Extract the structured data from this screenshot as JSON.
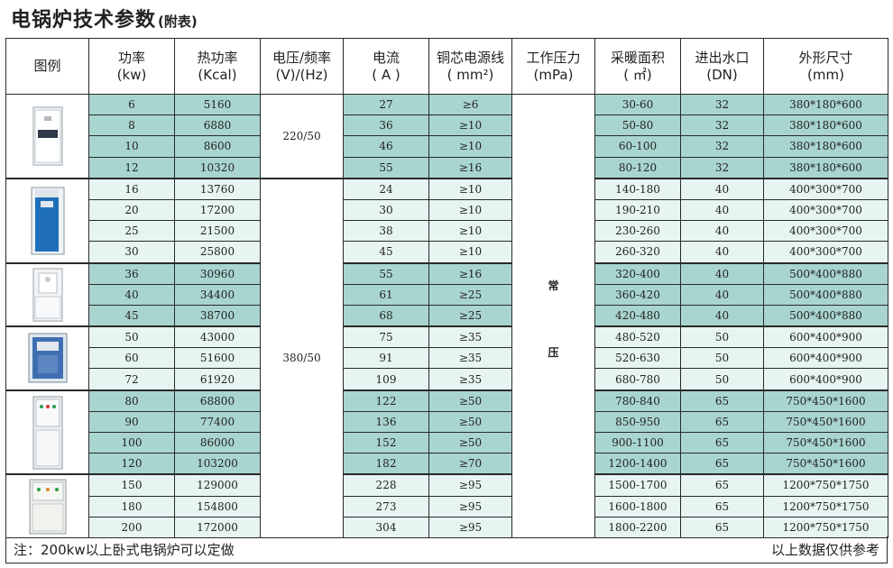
{
  "title": {
    "main": "电锅炉技术参数",
    "sub": "(附表)"
  },
  "headers": [
    {
      "l1": "图例",
      "l2": ""
    },
    {
      "l1": "功率",
      "l2": "(kw)"
    },
    {
      "l1": "热功率",
      "l2": "(Kcal)"
    },
    {
      "l1": "电压/频率",
      "l2": "(V)/(Hz)"
    },
    {
      "l1": "电流",
      "l2": "( A )"
    },
    {
      "l1": "铜芯电源线",
      "l2": "( mm²)"
    },
    {
      "l1": "工作压力",
      "l2": "(mPa)"
    },
    {
      "l1": "采暖面积",
      "l2": "( ㎡)"
    },
    {
      "l1": "进出水口",
      "l2": "(DN)"
    },
    {
      "l1": "外形尺寸",
      "l2": "(mm)"
    }
  ],
  "voltage": {
    "low": "220/50",
    "high": "380/50"
  },
  "pressure": {
    "c1": "常",
    "c2": "压"
  },
  "rows": [
    {
      "kw": "6",
      "kcal": "5160",
      "a": "27",
      "wire": "≥6",
      "area": "30-60",
      "dn": "32",
      "size": "380*180*600"
    },
    {
      "kw": "8",
      "kcal": "6880",
      "a": "36",
      "wire": "≥10",
      "area": "50-80",
      "dn": "32",
      "size": "380*180*600"
    },
    {
      "kw": "10",
      "kcal": "8600",
      "a": "46",
      "wire": "≥10",
      "area": "60-100",
      "dn": "32",
      "size": "380*180*600"
    },
    {
      "kw": "12",
      "kcal": "10320",
      "a": "55",
      "wire": "≥16",
      "area": "80-120",
      "dn": "32",
      "size": "380*180*600"
    },
    {
      "kw": "16",
      "kcal": "13760",
      "a": "24",
      "wire": "≥10",
      "area": "140-180",
      "dn": "40",
      "size": "400*300*700"
    },
    {
      "kw": "20",
      "kcal": "17200",
      "a": "30",
      "wire": "≥10",
      "area": "190-210",
      "dn": "40",
      "size": "400*300*700"
    },
    {
      "kw": "25",
      "kcal": "21500",
      "a": "38",
      "wire": "≥10",
      "area": "230-260",
      "dn": "40",
      "size": "400*300*700"
    },
    {
      "kw": "30",
      "kcal": "25800",
      "a": "45",
      "wire": "≥10",
      "area": "260-320",
      "dn": "40",
      "size": "400*300*700"
    },
    {
      "kw": "36",
      "kcal": "30960",
      "a": "55",
      "wire": "≥16",
      "area": "320-400",
      "dn": "40",
      "size": "500*400*880"
    },
    {
      "kw": "40",
      "kcal": "34400",
      "a": "61",
      "wire": "≥25",
      "area": "360-420",
      "dn": "40",
      "size": "500*400*880"
    },
    {
      "kw": "45",
      "kcal": "38700",
      "a": "68",
      "wire": "≥25",
      "area": "420-480",
      "dn": "40",
      "size": "500*400*880"
    },
    {
      "kw": "50",
      "kcal": "43000",
      "a": "75",
      "wire": "≥35",
      "area": "480-520",
      "dn": "50",
      "size": "600*400*900"
    },
    {
      "kw": "60",
      "kcal": "51600",
      "a": "91",
      "wire": "≥35",
      "area": "520-630",
      "dn": "50",
      "size": "600*400*900"
    },
    {
      "kw": "72",
      "kcal": "61920",
      "a": "109",
      "wire": "≥35",
      "area": "680-780",
      "dn": "50",
      "size": "600*400*900"
    },
    {
      "kw": "80",
      "kcal": "68800",
      "a": "122",
      "wire": "≥50",
      "area": "780-840",
      "dn": "65",
      "size": "750*450*1600"
    },
    {
      "kw": "90",
      "kcal": "77400",
      "a": "136",
      "wire": "≥50",
      "area": "850-950",
      "dn": "65",
      "size": "750*450*1600"
    },
    {
      "kw": "100",
      "kcal": "86000",
      "a": "152",
      "wire": "≥50",
      "area": "900-1100",
      "dn": "65",
      "size": "750*450*1600"
    },
    {
      "kw": "120",
      "kcal": "103200",
      "a": "182",
      "wire": "≥70",
      "area": "1200-1400",
      "dn": "65",
      "size": "750*450*1600"
    },
    {
      "kw": "150",
      "kcal": "129000",
      "a": "228",
      "wire": "≥95",
      "area": "1500-1700",
      "dn": "65",
      "size": "1200*750*1750"
    },
    {
      "kw": "180",
      "kcal": "154800",
      "a": "273",
      "wire": "≥95",
      "area": "1600-1800",
      "dn": "65",
      "size": "1200*750*1750"
    },
    {
      "kw": "200",
      "kcal": "172000",
      "a": "304",
      "wire": "≥95",
      "area": "1800-2200",
      "dn": "65",
      "size": "1200*750*1750"
    }
  ],
  "footer": {
    "left": "注：200kw以上卧式电锅炉可以定做",
    "right": "以上数据仅供参考"
  },
  "colors": {
    "dark_cell": "#a9d5d0",
    "light_cell": "#e6f4f2",
    "border": "#2a2a2a"
  }
}
